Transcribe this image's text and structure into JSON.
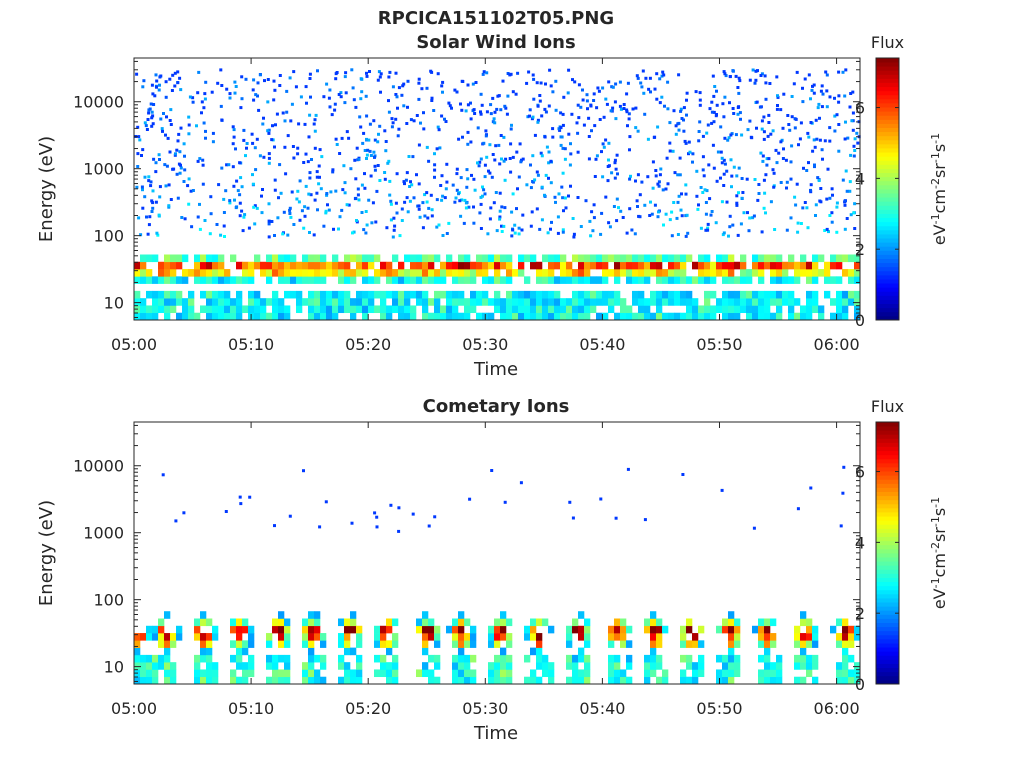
{
  "figure_title": "RPCICA151102T05.PNG",
  "chart_data": [
    {
      "type": "heatmap",
      "title": "Solar Wind Ions",
      "xlabel": "Time",
      "ylabel": "Energy (eV)",
      "xlim": [
        "05:00",
        "06:02"
      ],
      "ylim": [
        5.5,
        45000
      ],
      "yscale": "log",
      "xticks": [
        "05:00",
        "05:10",
        "05:20",
        "05:30",
        "05:40",
        "05:50",
        "06:00"
      ],
      "yticks": [
        10,
        100,
        1000,
        10000
      ],
      "ytick_labels": [
        "10",
        "100",
        "1000",
        "10000"
      ],
      "colorbar": {
        "label": "Flux",
        "unit_label": "eV-1cm-2sr-1s-1",
        "range": [
          0,
          7.4
        ],
        "ticks": [
          "0",
          "2",
          "4",
          "6"
        ],
        "colormap": "jet"
      },
      "grid": false,
      "peak_times_min": [
        0.2,
        2.6,
        5.8,
        8.8,
        12.1,
        15.2,
        18.4,
        21.4,
        24.9,
        28.1,
        31.3,
        34.5,
        37.9,
        41.2,
        44.5,
        47.7,
        50.9,
        54.1,
        57.3,
        60.7
      ],
      "dominant_flux_band_eV": [
        20,
        45
      ]
    },
    {
      "type": "heatmap",
      "title": "Cometary Ions",
      "xlabel": "Time",
      "ylabel": "Energy (eV)",
      "xlim": [
        "05:00",
        "06:02"
      ],
      "ylim": [
        5.5,
        45000
      ],
      "yscale": "log",
      "xticks": [
        "05:00",
        "05:10",
        "05:20",
        "05:30",
        "05:40",
        "05:50",
        "06:00"
      ],
      "yticks": [
        10,
        100,
        1000,
        10000
      ],
      "ytick_labels": [
        "10",
        "100",
        "1000",
        "10000"
      ],
      "colorbar": {
        "label": "Flux",
        "unit_label": "eV-1cm-2sr-1s-1",
        "range": [
          0,
          7.4
        ],
        "ticks": [
          "0",
          "2",
          "4",
          "6"
        ],
        "colormap": "jet"
      },
      "grid": false,
      "peak_times_min": [
        0.3,
        2.8,
        6.0,
        9.0,
        12.3,
        15.3,
        18.5,
        21.6,
        25.0,
        28.0,
        31.4,
        34.6,
        38.0,
        41.3,
        44.4,
        47.6,
        50.9,
        54.1,
        57.2,
        60.8
      ],
      "dominant_flux_band_eV": [
        18,
        45
      ],
      "peak_flux": 7.2
    }
  ]
}
